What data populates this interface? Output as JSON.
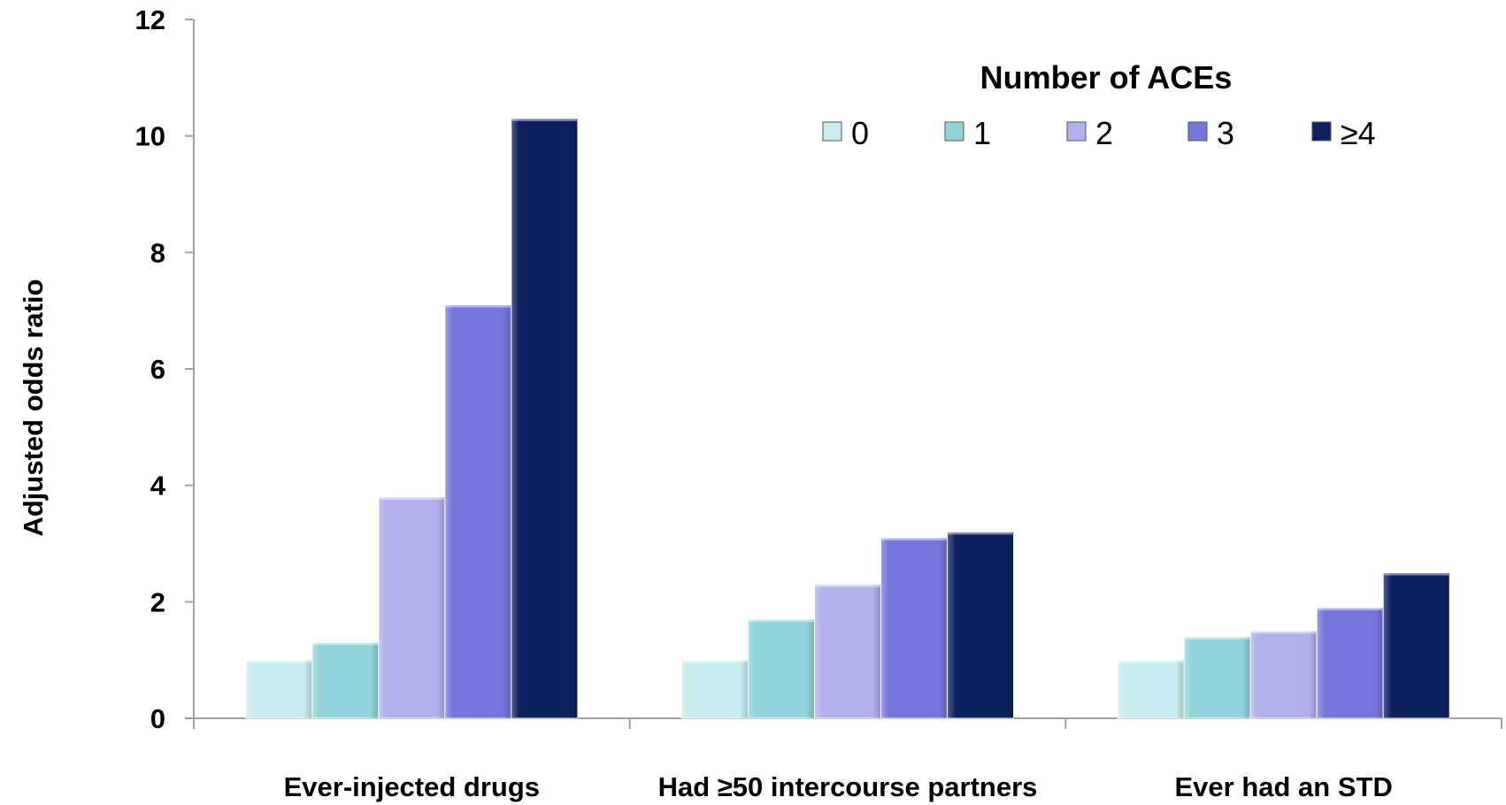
{
  "chart_data": {
    "type": "bar",
    "title": "",
    "xlabel": "",
    "ylabel": "Adjusted odds ratio",
    "ylim": [
      0,
      12
    ],
    "yticks": [
      "0",
      "2",
      "4",
      "6",
      "8",
      "10",
      "12"
    ],
    "categories": [
      "Ever-injected drugs",
      "Had ≥50 intercourse partners",
      "Ever had an STD"
    ],
    "legend": {
      "title": "Number of ACEs",
      "placement": "top-right"
    },
    "grid": false,
    "series": [
      {
        "name": "0",
        "color": "#c8ecef",
        "values": [
          1.0,
          1.0,
          1.0
        ]
      },
      {
        "name": "1",
        "color": "#8fd4d8",
        "values": [
          1.3,
          1.7,
          1.4
        ]
      },
      {
        "name": "2",
        "color": "#b0b0ec",
        "values": [
          3.8,
          2.3,
          1.5
        ]
      },
      {
        "name": "3",
        "color": "#7576dc",
        "values": [
          7.1,
          3.1,
          1.9
        ]
      },
      {
        "name": "≥4",
        "color": "#0e2260",
        "values": [
          10.3,
          3.2,
          2.5
        ]
      }
    ]
  }
}
